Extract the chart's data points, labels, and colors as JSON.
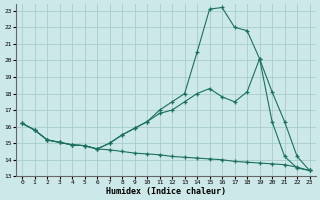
{
  "xlabel": "Humidex (Indice chaleur)",
  "xlim": [
    -0.5,
    23.5
  ],
  "ylim": [
    13,
    23.4
  ],
  "xticks": [
    0,
    1,
    2,
    3,
    4,
    5,
    6,
    7,
    8,
    9,
    10,
    11,
    12,
    13,
    14,
    15,
    16,
    17,
    18,
    19,
    20,
    21,
    22,
    23
  ],
  "yticks": [
    13,
    14,
    15,
    16,
    17,
    18,
    19,
    20,
    21,
    22,
    23
  ],
  "bg_color": "#cde8e8",
  "grid_color": "#a0c8c8",
  "line_color": "#1a7060",
  "line1_x": [
    0,
    1,
    2,
    3,
    4,
    5,
    6,
    7,
    8,
    9,
    10,
    11,
    12,
    13,
    14,
    15,
    16,
    17,
    18,
    19,
    20,
    21,
    22,
    23
  ],
  "line1_y": [
    16.2,
    15.8,
    15.2,
    15.05,
    14.9,
    14.85,
    14.65,
    14.6,
    14.5,
    14.4,
    14.35,
    14.3,
    14.2,
    14.15,
    14.1,
    14.05,
    14.0,
    13.9,
    13.85,
    13.8,
    13.75,
    13.7,
    13.55,
    13.35
  ],
  "line2_x": [
    0,
    1,
    2,
    3,
    4,
    5,
    6,
    7,
    8,
    9,
    10,
    11,
    12,
    13,
    14,
    15,
    16,
    17,
    18,
    19,
    20,
    21,
    22,
    23
  ],
  "line2_y": [
    16.2,
    15.8,
    15.2,
    15.05,
    14.9,
    14.85,
    14.65,
    15.0,
    15.5,
    15.9,
    16.3,
    16.8,
    17.0,
    17.5,
    18.0,
    18.3,
    17.8,
    17.5,
    18.1,
    20.1,
    16.3,
    14.2,
    13.5,
    13.35
  ],
  "line3_x": [
    0,
    1,
    2,
    3,
    4,
    5,
    6,
    7,
    8,
    9,
    10,
    11,
    12,
    13,
    14,
    15,
    16,
    17,
    18,
    19,
    20,
    21,
    22,
    23
  ],
  "line3_y": [
    16.2,
    15.8,
    15.2,
    15.05,
    14.9,
    14.85,
    14.65,
    15.0,
    15.5,
    15.9,
    16.3,
    17.0,
    17.5,
    18.0,
    20.5,
    23.1,
    23.2,
    22.0,
    21.8,
    20.1,
    18.1,
    16.3,
    14.2,
    13.35
  ]
}
